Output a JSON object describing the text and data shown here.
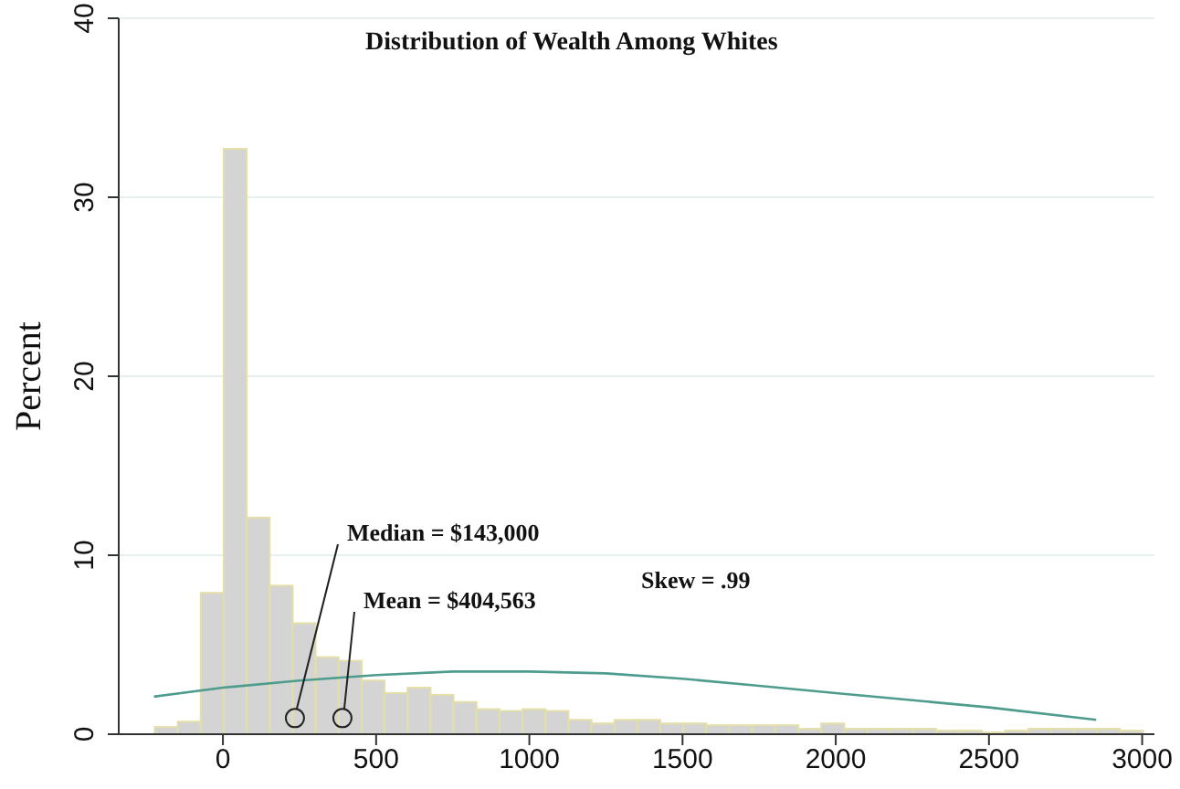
{
  "chart_data": {
    "type": "histogram",
    "title": "Distribution of Wealth Among Whites",
    "ylabel": "Percent",
    "bins": [
      -225,
      -150,
      -75,
      0,
      75,
      150,
      225,
      300,
      375,
      450,
      525,
      600,
      675,
      750,
      825,
      900,
      975,
      1050,
      1125,
      1200,
      1275,
      1350,
      1425,
      1500,
      1575,
      1650,
      1725,
      1800,
      1875,
      1950,
      2025,
      2100,
      2175,
      2250,
      2325,
      2400,
      2475,
      2550,
      2625,
      2700,
      2775,
      2850,
      2925,
      3000
    ],
    "values": [
      0.4,
      0.7,
      7.9,
      32.7,
      12.1,
      8.3,
      6.2,
      4.3,
      4.1,
      3.0,
      2.3,
      2.6,
      2.2,
      1.8,
      1.4,
      1.3,
      1.4,
      1.3,
      0.8,
      0.6,
      0.8,
      0.8,
      0.6,
      0.6,
      0.5,
      0.5,
      0.5,
      0.5,
      0.3,
      0.6,
      0.3,
      0.3,
      0.3,
      0.3,
      0.2,
      0.2,
      0.1,
      0.2,
      0.3,
      0.3,
      0.3,
      0.3,
      0.2
    ],
    "color": "#d4d4d4",
    "series": [
      {
        "type": "line",
        "color": "#4e9c8e",
        "x": [
          -225,
          0,
          250,
          500,
          750,
          1000,
          1250,
          1500,
          1750,
          2000,
          2250,
          2500,
          2850
        ],
        "values": [
          2.1,
          2.6,
          3.0,
          3.3,
          3.5,
          3.5,
          3.4,
          3.1,
          2.7,
          2.3,
          1.9,
          1.5,
          0.8
        ]
      }
    ],
    "xlim": [
      -340,
      3040
    ],
    "xticks": [
      0,
      500,
      1000,
      1500,
      2000,
      2500,
      3000
    ],
    "ylim": [
      0,
      40
    ],
    "yticks": [
      0,
      10,
      20,
      30,
      40
    ],
    "grid": "y",
    "annotations": [
      {
        "text": "Median = $143,000",
        "x": 235,
        "y": 0.9
      },
      {
        "text": "Mean = $404,563",
        "x": 390,
        "y": 0.9
      },
      "Skew = .99"
    ]
  }
}
